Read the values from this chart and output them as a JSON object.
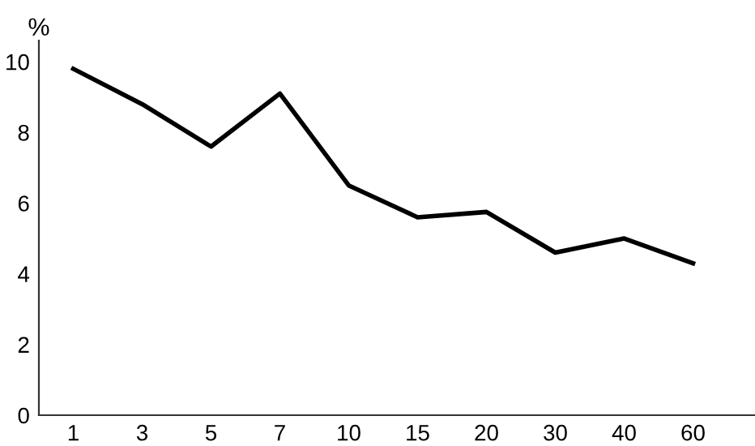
{
  "chart_data": {
    "type": "line",
    "ylabel": "%",
    "categories": [
      "1",
      "3",
      "5",
      "7",
      "10",
      "15",
      "20",
      "30",
      "40",
      "60"
    ],
    "series": [
      {
        "color": "#000000",
        "values": [
          9.8,
          8.8,
          7.6,
          9.1,
          6.5,
          5.6,
          5.75,
          4.6,
          5.0,
          4.3
        ]
      }
    ],
    "ylim": [
      0,
      10.6
    ],
    "yticks": [
      0,
      2,
      4,
      6,
      8,
      10
    ],
    "grid": false,
    "legend": false,
    "marker": "none",
    "line_style": "solid"
  }
}
